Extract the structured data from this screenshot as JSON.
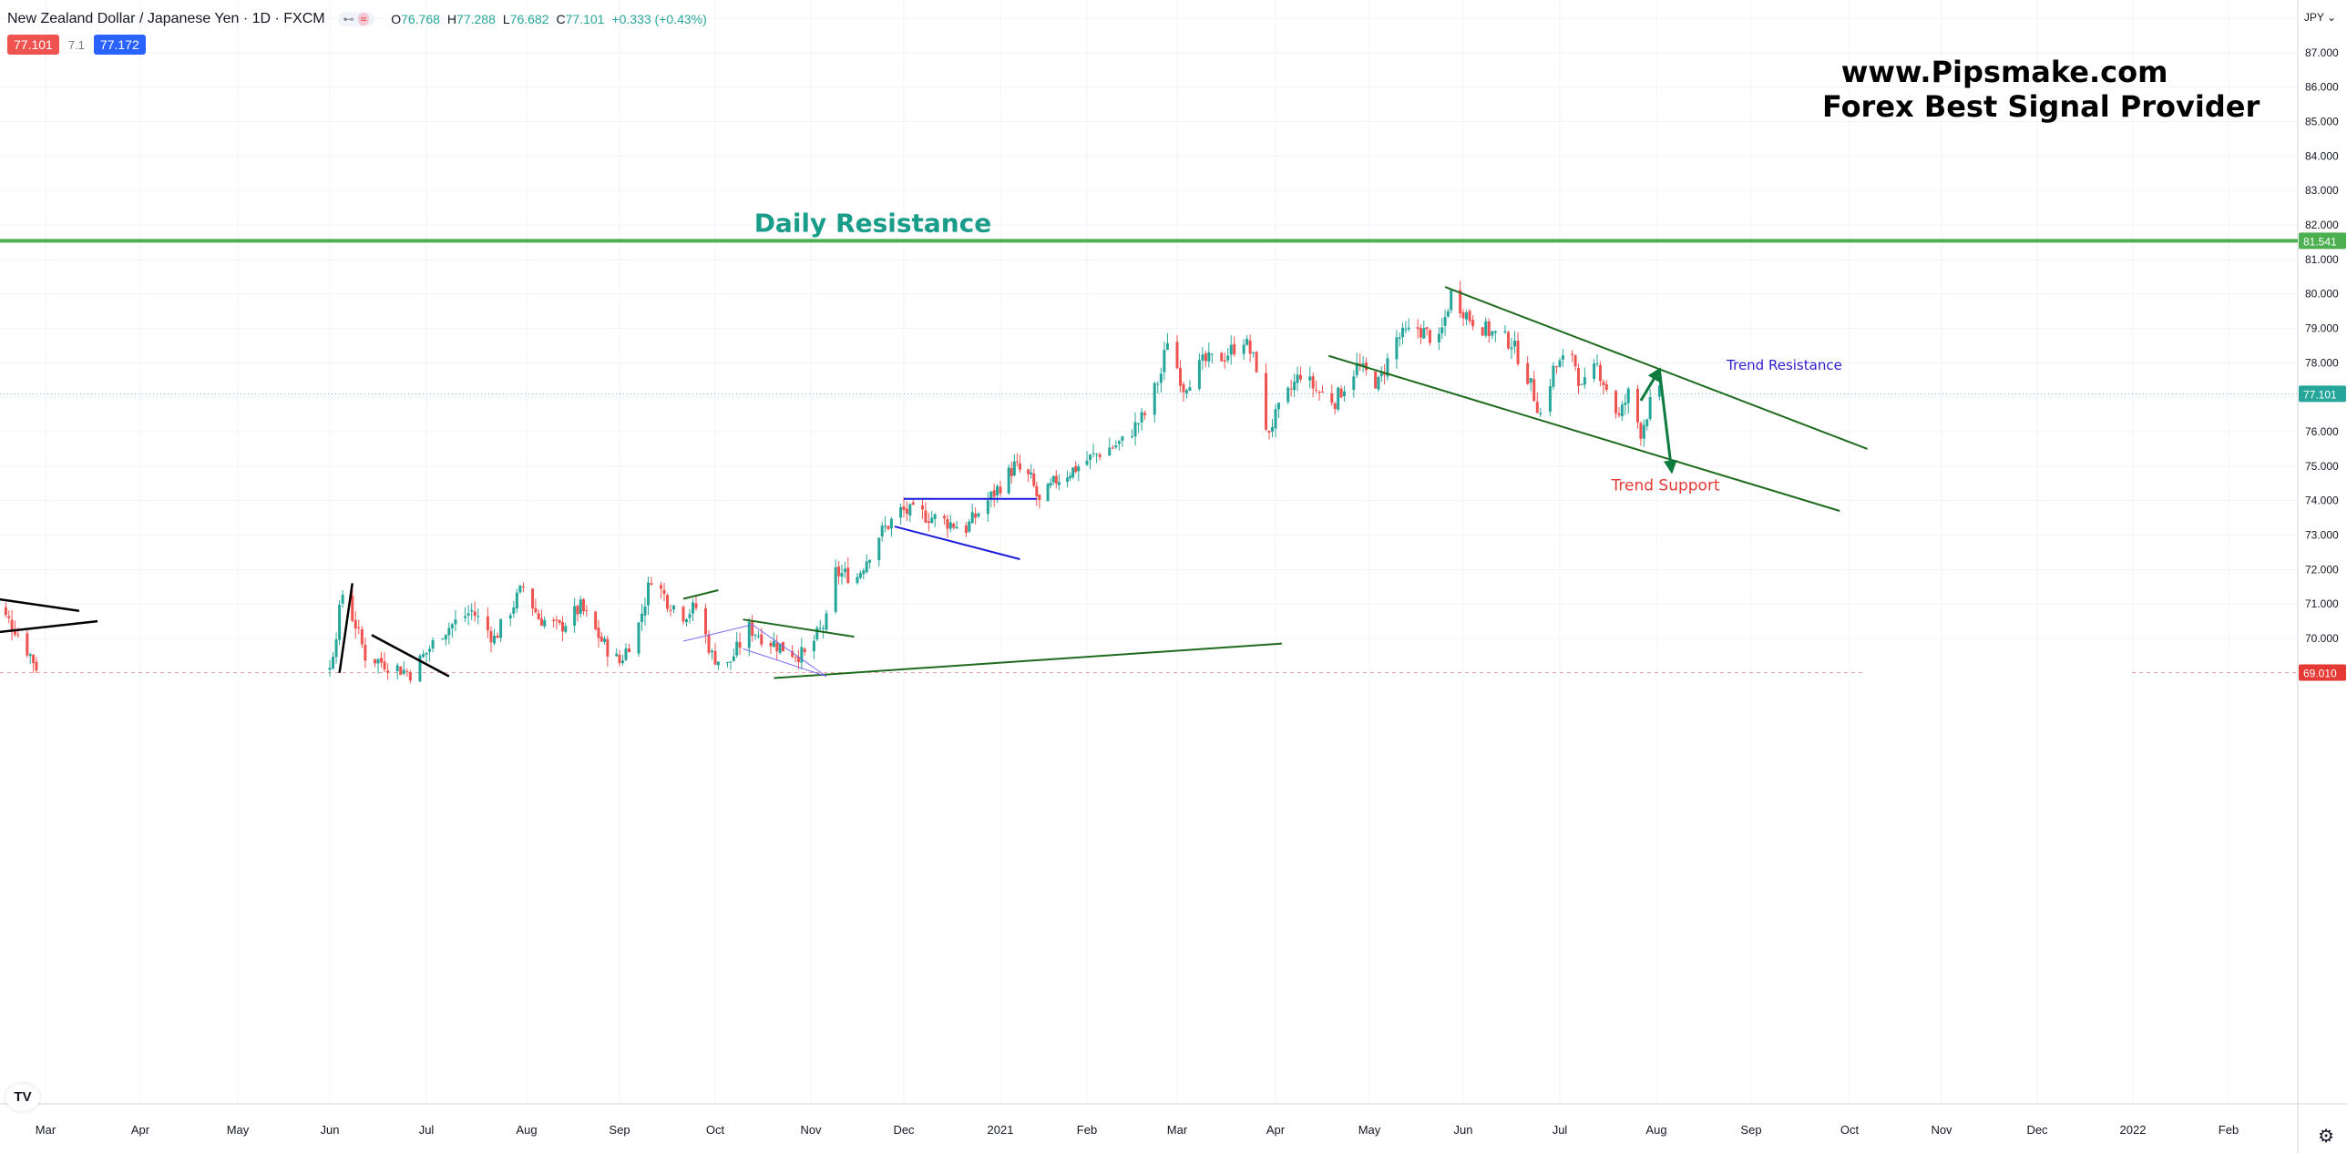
{
  "header": {
    "symbol": "New Zealand Dollar / Japanese Yen · 1D · FXCM",
    "open_label": "O",
    "open": "76.768",
    "high_label": "H",
    "high": "77.288",
    "low_label": "L",
    "low": "76.682",
    "close_label": "C",
    "close": "77.101",
    "change": "+0.333 (+0.43%)",
    "sell_price": "77.101",
    "spread": "7.1",
    "buy_price": "77.172",
    "pill_icon": "eye-icon",
    "pill_icon_glyph": "⊷",
    "pill_wave": "≈"
  },
  "brand": {
    "site": "www.Pipsmake.com",
    "tagline": "Forex Best Signal Provider"
  },
  "currency_button": "JPY ⌄",
  "settings_icon": "⚙",
  "tv_logo": "TV",
  "colors": {
    "up": "#26a69a",
    "down": "#ef5350",
    "resistance": "#4caf50",
    "channel": "#1e6b1e",
    "blue_line": "#1a1adb",
    "arrow": "#0d7a3e",
    "trend_res_text": "#2e1bd0",
    "trend_sup_text": "#e53935",
    "daily_res_text": "#1a9c8a",
    "current_price": "#26a69a",
    "low_price": "#e53935"
  },
  "chart_data": {
    "type": "candlestick",
    "title": "",
    "ylim": [
      68.8,
      88.3
    ],
    "yticks": [
      "70.000",
      "71.000",
      "72.000",
      "73.000",
      "74.000",
      "75.000",
      "76.000",
      "77.000",
      "78.000",
      "79.000",
      "80.000",
      "81.000",
      "82.000",
      "83.000",
      "84.000",
      "85.000",
      "86.000",
      "87.000",
      "88.000"
    ],
    "xticks": [
      {
        "label": "Mar",
        "date": "2020-03-01"
      },
      {
        "label": "Apr",
        "date": "2020-04-01"
      },
      {
        "label": "May",
        "date": "2020-05-01"
      },
      {
        "label": "Jun",
        "date": "2020-06-01"
      },
      {
        "label": "Jul",
        "date": "2020-07-01"
      },
      {
        "label": "Aug",
        "date": "2020-08-01"
      },
      {
        "label": "Sep",
        "date": "2020-09-01"
      },
      {
        "label": "Oct",
        "date": "2020-10-01"
      },
      {
        "label": "Nov",
        "date": "2020-11-01"
      },
      {
        "label": "Dec",
        "date": "2020-12-01"
      },
      {
        "label": "2021",
        "date": "2021-01-01"
      },
      {
        "label": "Feb",
        "date": "2021-02-01"
      },
      {
        "label": "Mar",
        "date": "2021-03-01"
      },
      {
        "label": "Apr",
        "date": "2021-04-01"
      },
      {
        "label": "May",
        "date": "2021-05-01"
      },
      {
        "label": "Jun",
        "date": "2021-06-01"
      },
      {
        "label": "Jul",
        "date": "2021-07-01"
      },
      {
        "label": "Aug",
        "date": "2021-08-01"
      },
      {
        "label": "Sep",
        "date": "2021-09-01"
      },
      {
        "label": "Oct",
        "date": "2021-10-01"
      },
      {
        "label": "Nov",
        "date": "2021-11-01"
      },
      {
        "label": "Dec",
        "date": "2021-12-01"
      },
      {
        "label": "2022",
        "date": "2022-01-01"
      },
      {
        "label": "Feb",
        "date": "2022-02-01"
      }
    ],
    "close_path": [
      {
        "date": "2020-02-12",
        "value": 71.1
      },
      {
        "date": "2020-02-20",
        "value": 70.3
      },
      {
        "date": "2020-02-27",
        "value": 69.2
      },
      {
        "date": "2020-06-01",
        "value": 69.1
      },
      {
        "date": "2020-06-05",
        "value": 71.3
      },
      {
        "date": "2020-06-09",
        "value": 70.4
      },
      {
        "date": "2020-06-12",
        "value": 69.5
      },
      {
        "date": "2020-06-26",
        "value": 69.0
      },
      {
        "date": "2020-07-06",
        "value": 70.2
      },
      {
        "date": "2020-07-15",
        "value": 70.8
      },
      {
        "date": "2020-07-22",
        "value": 70.0
      },
      {
        "date": "2020-07-31",
        "value": 71.5
      },
      {
        "date": "2020-08-05",
        "value": 70.6
      },
      {
        "date": "2020-08-12",
        "value": 70.3
      },
      {
        "date": "2020-08-19",
        "value": 70.9
      },
      {
        "date": "2020-08-27",
        "value": 69.8
      },
      {
        "date": "2020-09-01",
        "value": 69.3
      },
      {
        "date": "2020-09-07",
        "value": 70.4
      },
      {
        "date": "2020-09-11",
        "value": 71.8
      },
      {
        "date": "2020-09-16",
        "value": 71.1
      },
      {
        "date": "2020-09-21",
        "value": 70.7
      },
      {
        "date": "2020-09-25",
        "value": 70.9
      },
      {
        "date": "2020-09-30",
        "value": 69.5
      },
      {
        "date": "2020-10-05",
        "value": 69.2
      },
      {
        "date": "2020-10-12",
        "value": 70.3
      },
      {
        "date": "2020-10-19",
        "value": 69.9
      },
      {
        "date": "2020-10-26",
        "value": 69.6
      },
      {
        "date": "2020-10-30",
        "value": 69.5
      },
      {
        "date": "2020-11-06",
        "value": 70.5
      },
      {
        "date": "2020-11-09",
        "value": 71.9
      },
      {
        "date": "2020-11-16",
        "value": 71.8
      },
      {
        "date": "2020-11-23",
        "value": 73.0
      },
      {
        "date": "2020-11-30",
        "value": 73.7
      },
      {
        "date": "2020-12-07",
        "value": 73.6
      },
      {
        "date": "2020-12-14",
        "value": 73.4
      },
      {
        "date": "2020-12-21",
        "value": 73.2
      },
      {
        "date": "2020-12-28",
        "value": 74.0
      },
      {
        "date": "2021-01-06",
        "value": 75.0
      },
      {
        "date": "2021-01-12",
        "value": 74.6
      },
      {
        "date": "2021-01-15",
        "value": 73.9
      },
      {
        "date": "2021-01-21",
        "value": 74.6
      },
      {
        "date": "2021-01-29",
        "value": 75.0
      },
      {
        "date": "2021-02-05",
        "value": 75.4
      },
      {
        "date": "2021-02-12",
        "value": 75.7
      },
      {
        "date": "2021-02-19",
        "value": 76.5
      },
      {
        "date": "2021-02-24",
        "value": 77.7
      },
      {
        "date": "2021-02-26",
        "value": 78.7
      },
      {
        "date": "2021-03-03",
        "value": 77.3
      },
      {
        "date": "2021-03-09",
        "value": 78.0
      },
      {
        "date": "2021-03-16",
        "value": 78.2
      },
      {
        "date": "2021-03-22",
        "value": 78.7
      },
      {
        "date": "2021-03-26",
        "value": 77.9
      },
      {
        "date": "2021-03-29",
        "value": 75.9
      },
      {
        "date": "2021-04-02",
        "value": 76.6
      },
      {
        "date": "2021-04-09",
        "value": 77.7
      },
      {
        "date": "2021-04-14",
        "value": 77.2
      },
      {
        "date": "2021-04-20",
        "value": 76.9
      },
      {
        "date": "2021-04-27",
        "value": 77.9
      },
      {
        "date": "2021-05-04",
        "value": 77.4
      },
      {
        "date": "2021-05-10",
        "value": 78.7
      },
      {
        "date": "2021-05-17",
        "value": 79.0
      },
      {
        "date": "2021-05-24",
        "value": 78.6
      },
      {
        "date": "2021-05-28",
        "value": 80.0
      },
      {
        "date": "2021-06-03",
        "value": 79.3
      },
      {
        "date": "2021-06-09",
        "value": 78.9
      },
      {
        "date": "2021-06-16",
        "value": 78.6
      },
      {
        "date": "2021-06-21",
        "value": 77.6
      },
      {
        "date": "2021-06-25",
        "value": 76.5
      },
      {
        "date": "2021-06-29",
        "value": 77.8
      },
      {
        "date": "2021-07-05",
        "value": 78.3
      },
      {
        "date": "2021-07-08",
        "value": 77.2
      },
      {
        "date": "2021-07-13",
        "value": 77.9
      },
      {
        "date": "2021-07-20",
        "value": 76.4
      },
      {
        "date": "2021-07-23",
        "value": 77.1
      },
      {
        "date": "2021-07-27",
        "value": 76.0
      },
      {
        "date": "2021-07-30",
        "value": 76.8
      },
      {
        "date": "2021-08-02",
        "value": 77.1
      }
    ],
    "horizontal_lines": [
      {
        "label": "Daily Resistance",
        "value": 81.541,
        "axis_label": "81.541"
      },
      {
        "label": "current",
        "value": 77.101,
        "axis_label": "77.101"
      },
      {
        "label": "low",
        "value": 69.01,
        "axis_label": "69.010"
      }
    ],
    "drawings": [
      {
        "name": "trend-resistance-line",
        "from": {
          "date": "2021-05-26",
          "value": 80.2
        },
        "to": {
          "date": "2021-10-07",
          "value": 75.5
        }
      },
      {
        "name": "trend-support-line",
        "from": {
          "date": "2021-04-18",
          "value": 78.2
        },
        "to": {
          "date": "2021-09-28",
          "value": 73.7
        }
      },
      {
        "name": "blue-resistance-line",
        "from": {
          "date": "2020-12-01",
          "value": 74.05
        },
        "to": {
          "date": "2021-01-14",
          "value": 74.05
        }
      },
      {
        "name": "blue-support-line",
        "from": {
          "date": "2020-11-28",
          "value": 73.25
        },
        "to": {
          "date": "2021-01-08",
          "value": 72.3
        }
      },
      {
        "name": "long-green-trendline",
        "from": {
          "date": "2020-10-20",
          "value": 68.85
        },
        "to": {
          "date": "2021-04-03",
          "value": 69.85
        }
      },
      {
        "name": "green-wedge-top",
        "from": {
          "date": "2020-10-10",
          "value": 70.55
        },
        "to": {
          "date": "2020-11-15",
          "value": 70.05
        }
      },
      {
        "name": "green-short-line",
        "from": {
          "date": "2020-09-21",
          "value": 71.15
        },
        "to": {
          "date": "2020-10-02",
          "value": 71.4
        }
      },
      {
        "name": "black-line-1",
        "from": {
          "date": "2020-02-06",
          "value": 71.25
        },
        "to": {
          "date": "2020-03-12",
          "value": 70.8
        }
      },
      {
        "name": "black-line-2",
        "from": {
          "date": "2020-02-06",
          "value": 70.1
        },
        "to": {
          "date": "2020-03-18",
          "value": 70.5
        }
      },
      {
        "name": "black-line-3",
        "from": {
          "date": "2020-06-14",
          "value": 70.1
        },
        "to": {
          "date": "2020-07-08",
          "value": 68.9
        }
      },
      {
        "name": "black-line-4",
        "from": {
          "date": "2020-06-04",
          "value": 69.0
        },
        "to": {
          "date": "2020-06-08",
          "value": 71.6
        }
      }
    ],
    "arrows": [
      {
        "name": "up-arrow",
        "from": {
          "date": "2021-07-27",
          "value": 76.9
        },
        "to": {
          "date": "2021-08-02",
          "value": 77.8
        }
      },
      {
        "name": "down-arrow",
        "from": {
          "date": "2021-08-02",
          "value": 77.8
        },
        "to": {
          "date": "2021-08-06",
          "value": 74.85
        }
      }
    ],
    "annotations": [
      {
        "text": "Daily Resistance",
        "date": "2020-11-21",
        "value": 81.8
      },
      {
        "text": "Trend Resistance",
        "date": "2021-08-24",
        "value": 77.8
      },
      {
        "text": "Trend Support",
        "date": "2021-08-04",
        "value": 74.3
      }
    ]
  }
}
